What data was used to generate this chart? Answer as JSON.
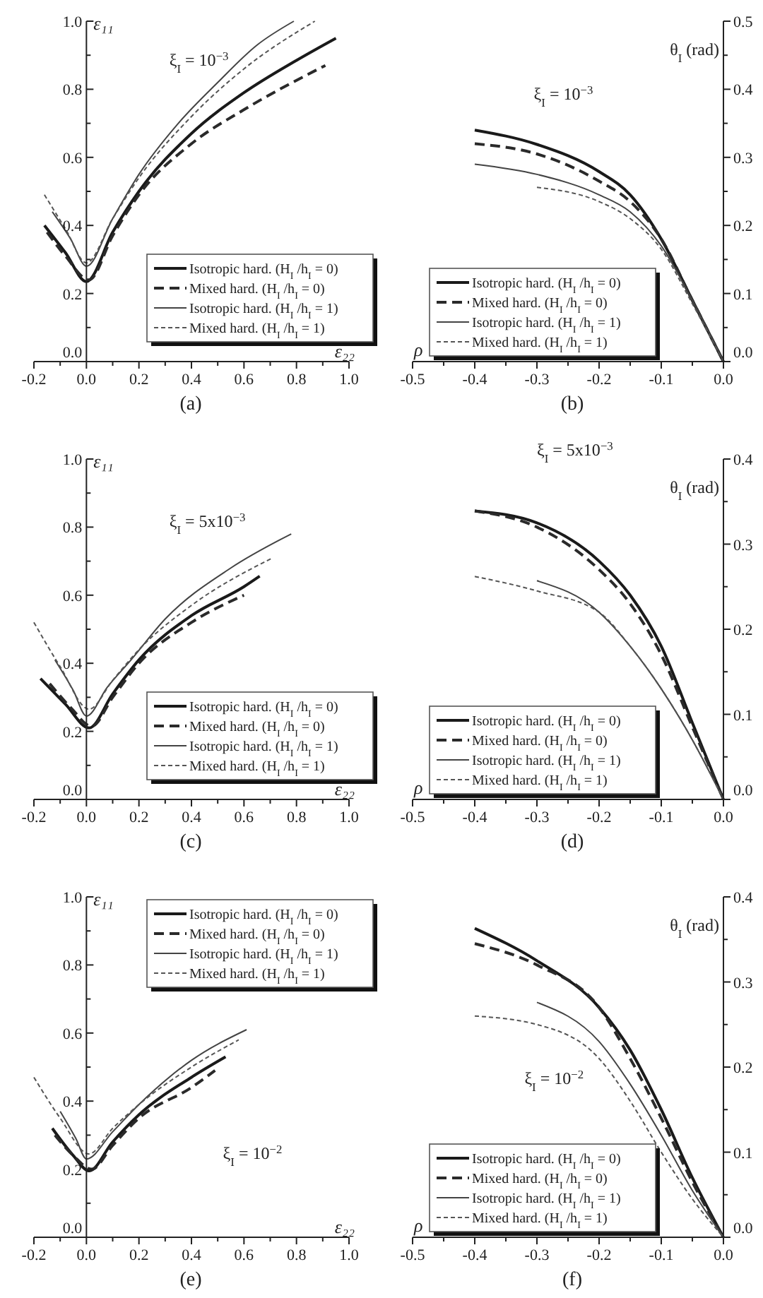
{
  "chart_data": [
    {
      "type": "line",
      "title": "(a)",
      "xlabel": "ε₂₂",
      "ylabel": "ε₁₁",
      "annotations": [
        "ξ$_{I}$ = 10$^{−3}$"
      ],
      "legend": "bottom right",
      "xlim": [
        -0.2,
        1.0
      ],
      "ylim": [
        0,
        1.0
      ],
      "xticks": [
        -0.2,
        {
          "value": -0.1,
          "label": null
        },
        {
          "value": 0,
          "label": "0.0"
        },
        {
          "value": 0.1,
          "label": null
        },
        0.2,
        {
          "value": 0.3,
          "label": null
        },
        0.4,
        {
          "value": 0.5,
          "label": null
        },
        0.6,
        {
          "value": 0.7,
          "label": null
        },
        0.8,
        {
          "value": 0.9,
          "label": null
        },
        {
          "value": 1,
          "label": "1.0"
        }
      ],
      "yticks": [
        {
          "value": 0,
          "label": "0.0"
        },
        {
          "value": 0.1,
          "label": null
        },
        0.2,
        {
          "value": 0.3,
          "label": null
        },
        0.4,
        {
          "value": 0.5,
          "label": null
        },
        0.6,
        {
          "value": 0.7,
          "label": null
        },
        0.8,
        {
          "value": 0.9,
          "label": null
        },
        {
          "value": 1,
          "label": "1.0"
        }
      ],
      "series": [
        {
          "name": "Isotropic hard. (H$_{I}$ /h$_{I}$ = 0)",
          "color": "#1a1a1a",
          "line_style": "solid",
          "x": [
            -0.16,
            -0.08,
            0,
            0.1,
            0.2,
            0.4,
            0.6,
            0.8,
            0.95
          ],
          "values": [
            0.4,
            0.32,
            0.235,
            0.38,
            0.5,
            0.67,
            0.79,
            0.885,
            0.95
          ]
        },
        {
          "name": "Mixed hard. (H$_{I}$ /h$_{I}$ = 0)",
          "color": "#2a2a2a",
          "line_style": "dashed",
          "x": [
            -0.15,
            -0.08,
            0.01,
            0.1,
            0.2,
            0.4,
            0.6,
            0.91
          ],
          "values": [
            0.38,
            0.31,
            0.24,
            0.37,
            0.49,
            0.64,
            0.74,
            0.87
          ]
        },
        {
          "name": "Isotropic hard. (H$_{I}$ /h$_{I}$ = 1)",
          "color": "#444444",
          "line_style": "solid",
          "x": [
            -0.13,
            -0.06,
            0,
            0.1,
            0.2,
            0.35,
            0.5,
            0.65,
            0.79
          ],
          "values": [
            0.44,
            0.36,
            0.28,
            0.42,
            0.55,
            0.7,
            0.82,
            0.93,
            1.0
          ]
        },
        {
          "name": "Mixed hard. (H$_{I}$ /h$_{I}$ = 1)",
          "color": "#555555",
          "line_style": "dotted",
          "x": [
            -0.16,
            -0.08,
            0,
            0.1,
            0.2,
            0.4,
            0.6,
            0.87
          ],
          "values": [
            0.49,
            0.39,
            0.29,
            0.42,
            0.54,
            0.72,
            0.86,
            1.0
          ]
        }
      ]
    },
    {
      "type": "line",
      "title": "(b)",
      "xlabel": "ρ",
      "ylabel": "θ$_{I}$ (rad)",
      "annotations": [
        "ξ$_{I}$ = 10$^{−3}$"
      ],
      "legend": "bottom left",
      "xlim": [
        -0.5,
        0
      ],
      "ylim": [
        0,
        0.5
      ],
      "xticks": [
        -0.5,
        {
          "value": -0.45,
          "label": null
        },
        -0.4,
        {
          "value": -0.35,
          "label": null
        },
        -0.3,
        {
          "value": -0.25,
          "label": null
        },
        -0.2,
        {
          "value": -0.15,
          "label": null
        },
        -0.1,
        {
          "value": -0.05,
          "label": null
        },
        {
          "value": 0,
          "label": "0.0"
        }
      ],
      "yticks": [
        {
          "value": 0,
          "label": "0.0"
        },
        {
          "value": 0.05,
          "label": null
        },
        0.1,
        {
          "value": 0.15,
          "label": null
        },
        0.2,
        {
          "value": 0.25,
          "label": null
        },
        0.3,
        {
          "value": 0.35,
          "label": null
        },
        0.4,
        {
          "value": 0.45,
          "label": null
        },
        0.5
      ],
      "series": [
        {
          "name": "Isotropic hard. (H$_{I}$ /h$_{I}$ = 0)",
          "color": "#1a1a1a",
          "line_style": "solid",
          "x": [
            -0.4,
            -0.3,
            -0.2,
            -0.15,
            -0.1,
            -0.05,
            0
          ],
          "values": [
            0.34,
            0.319,
            0.279,
            0.245,
            0.18,
            0.09,
            0
          ]
        },
        {
          "name": "Mixed hard. (H$_{I}$ /h$_{I}$ = 0)",
          "color": "#2a2a2a",
          "line_style": "dashed",
          "x": [
            -0.4,
            -0.3,
            -0.2,
            -0.15,
            -0.1,
            -0.05,
            0
          ],
          "values": [
            0.32,
            0.305,
            0.265,
            0.235,
            0.18,
            0.09,
            0
          ]
        },
        {
          "name": "Isotropic hard. (H$_{I}$ /h$_{I}$ = 1)",
          "color": "#444444",
          "line_style": "solid",
          "x": [
            -0.4,
            -0.3,
            -0.2,
            -0.15,
            -0.1,
            -0.05,
            0
          ],
          "values": [
            0.29,
            0.275,
            0.245,
            0.22,
            0.17,
            0.09,
            0
          ]
        },
        {
          "name": "Mixed hard. (H$_{I}$ /h$_{I}$ = 1)",
          "color": "#555555",
          "line_style": "dotted",
          "x": [
            -0.3,
            -0.2,
            -0.15,
            -0.1,
            -0.05,
            0
          ],
          "values": [
            0.256,
            0.235,
            0.21,
            0.165,
            0.085,
            0
          ]
        }
      ]
    },
    {
      "type": "line",
      "title": "(c)",
      "xlabel": "ε₂₂",
      "ylabel": "ε₁₁",
      "annotations": [
        "ξ$_{I}$ = 5x10$^{−3}$"
      ],
      "legend": "bottom right",
      "xlim": [
        -0.2,
        1.0
      ],
      "ylim": [
        0,
        1.0
      ],
      "xticks": [
        -0.2,
        {
          "value": -0.1,
          "label": null
        },
        {
          "value": 0,
          "label": "0.0"
        },
        {
          "value": 0.1,
          "label": null
        },
        0.2,
        {
          "value": 0.3,
          "label": null
        },
        0.4,
        {
          "value": 0.5,
          "label": null
        },
        0.6,
        {
          "value": 0.7,
          "label": null
        },
        0.8,
        {
          "value": 0.9,
          "label": null
        },
        {
          "value": 1,
          "label": "1.0"
        }
      ],
      "yticks": [
        {
          "value": 0,
          "label": "0.0"
        },
        {
          "value": 0.1,
          "label": null
        },
        0.2,
        {
          "value": 0.3,
          "label": null
        },
        0.4,
        {
          "value": 0.5,
          "label": null
        },
        0.6,
        {
          "value": 0.7,
          "label": null
        },
        0.8,
        {
          "value": 0.9,
          "label": null
        },
        {
          "value": 1,
          "label": "1.0"
        }
      ],
      "series": [
        {
          "name": "Isotropic hard. (H$_{I}$ /h$_{I}$ = 0)",
          "color": "#1a1a1a",
          "line_style": "solid",
          "x": [
            -0.175,
            -0.08,
            0.01,
            0.1,
            0.2,
            0.4,
            0.6,
            0.66
          ],
          "values": [
            0.355,
            0.28,
            0.21,
            0.31,
            0.41,
            0.54,
            0.625,
            0.656
          ]
        },
        {
          "name": "Mixed hard. (H$_{I}$ /h$_{I}$ = 0)",
          "color": "#2a2a2a",
          "line_style": "dashed",
          "x": [
            -0.14,
            -0.06,
            0.02,
            0.1,
            0.2,
            0.4,
            0.6
          ],
          "values": [
            0.34,
            0.27,
            0.215,
            0.3,
            0.4,
            0.52,
            0.6
          ]
        },
        {
          "name": "Isotropic hard. (H$_{I}$ /h$_{I}$ = 1)",
          "color": "#444444",
          "line_style": "solid",
          "x": [
            -0.12,
            -0.05,
            0,
            0.08,
            0.17,
            0.3,
            0.55,
            0.78
          ],
          "values": [
            0.41,
            0.32,
            0.245,
            0.33,
            0.41,
            0.53,
            0.68,
            0.78
          ]
        },
        {
          "name": "Mixed hard. (H$_{I}$ /h$_{I}$ = 1)",
          "color": "#555555",
          "line_style": "dotted",
          "x": [
            -0.2,
            -0.1,
            0.01,
            0.1,
            0.2,
            0.4,
            0.71
          ],
          "values": [
            0.52,
            0.39,
            0.265,
            0.35,
            0.44,
            0.57,
            0.71
          ]
        }
      ]
    },
    {
      "type": "line",
      "title": "(d)",
      "xlabel": "ρ",
      "ylabel": "θ$_{I}$ (rad)",
      "annotations": [
        "ξ$_{I}$ = 5x10$^{−3}$"
      ],
      "legend": "bottom left",
      "xlim": [
        -0.5,
        0
      ],
      "ylim": [
        0,
        0.4
      ],
      "xticks": [
        -0.5,
        {
          "value": -0.45,
          "label": null
        },
        -0.4,
        {
          "value": -0.35,
          "label": null
        },
        -0.3,
        {
          "value": -0.25,
          "label": null
        },
        -0.2,
        {
          "value": -0.15,
          "label": null
        },
        -0.1,
        {
          "value": -0.05,
          "label": null
        },
        {
          "value": 0,
          "label": "0.0"
        }
      ],
      "yticks": [
        {
          "value": 0,
          "label": "0.0"
        },
        {
          "value": 0.05,
          "label": null
        },
        0.1,
        {
          "value": 0.15,
          "label": null
        },
        0.2,
        {
          "value": 0.25,
          "label": null
        },
        0.3,
        {
          "value": 0.35,
          "label": null
        },
        0.4
      ],
      "series": [
        {
          "name": "Isotropic hard. (H$_{I}$ /h$_{I}$ = 0)",
          "color": "#1a1a1a",
          "line_style": "solid",
          "x": [
            -0.4,
            -0.3,
            -0.2,
            -0.15,
            -0.1,
            -0.05,
            0
          ],
          "values": [
            0.339,
            0.325,
            0.28,
            0.24,
            0.18,
            0.09,
            0
          ]
        },
        {
          "name": "Mixed hard. (H$_{I}$ /h$_{I}$ = 0)",
          "color": "#2a2a2a",
          "line_style": "dashed",
          "x": [
            -0.4,
            -0.3,
            -0.2,
            -0.15,
            -0.1,
            -0.05,
            0
          ],
          "values": [
            0.339,
            0.32,
            0.27,
            0.23,
            0.17,
            0.085,
            0
          ]
        },
        {
          "name": "Isotropic hard. (H$_{I}$ /h$_{I}$ = 1)",
          "color": "#444444",
          "line_style": "solid",
          "x": [
            -0.3,
            -0.2,
            -0.15,
            -0.1,
            -0.05,
            0
          ],
          "values": [
            0.257,
            0.22,
            0.18,
            0.13,
            0.07,
            0
          ]
        },
        {
          "name": "Mixed hard. (H$_{I}$ /h$_{I}$ = 1)",
          "color": "#555555",
          "line_style": "dotted",
          "x": [
            -0.4,
            -0.3,
            -0.2,
            -0.15,
            -0.1,
            -0.05,
            0
          ],
          "values": [
            0.262,
            0.245,
            0.22,
            0.18,
            0.13,
            0.07,
            0
          ]
        }
      ]
    },
    {
      "type": "line",
      "title": "(e)",
      "xlabel": "ε₂₂",
      "ylabel": "ε₁₁",
      "annotations": [
        "ξ$_{I}$ = 10$^{−2}$"
      ],
      "legend": "top right",
      "xlim": [
        -0.2,
        1.0
      ],
      "ylim": [
        0,
        1.0
      ],
      "xticks": [
        -0.2,
        {
          "value": -0.1,
          "label": null
        },
        {
          "value": 0,
          "label": "0.0"
        },
        {
          "value": 0.1,
          "label": null
        },
        0.2,
        {
          "value": 0.3,
          "label": null
        },
        0.4,
        {
          "value": 0.5,
          "label": null
        },
        0.6,
        {
          "value": 0.7,
          "label": null
        },
        0.8,
        {
          "value": 0.9,
          "label": null
        },
        {
          "value": 1,
          "label": "1.0"
        }
      ],
      "yticks": [
        {
          "value": 0,
          "label": "0.0"
        },
        {
          "value": 0.1,
          "label": null
        },
        0.2,
        {
          "value": 0.3,
          "label": null
        },
        0.4,
        {
          "value": 0.5,
          "label": null
        },
        0.6,
        {
          "value": 0.7,
          "label": null
        },
        0.8,
        {
          "value": 0.9,
          "label": null
        },
        {
          "value": 1,
          "label": "1.0"
        }
      ],
      "series": [
        {
          "name": "Isotropic hard. (H$_{I}$ /h$_{I}$ = 0)",
          "color": "#1a1a1a",
          "line_style": "solid",
          "x": [
            -0.13,
            -0.05,
            0.01,
            0.1,
            0.2,
            0.4,
            0.53
          ],
          "values": [
            0.32,
            0.24,
            0.195,
            0.28,
            0.36,
            0.47,
            0.53
          ]
        },
        {
          "name": "Mixed hard. (H$_{I}$ /h$_{I}$ = 0)",
          "color": "#2a2a2a",
          "line_style": "dashed",
          "x": [
            -0.12,
            -0.05,
            0.02,
            0.1,
            0.2,
            0.4,
            0.49
          ],
          "values": [
            0.3,
            0.24,
            0.2,
            0.27,
            0.35,
            0.44,
            0.49
          ]
        },
        {
          "name": "Isotropic hard. (H$_{I}$ /h$_{I}$ = 1)",
          "color": "#444444",
          "line_style": "solid",
          "x": [
            -0.1,
            -0.04,
            0,
            0.1,
            0.2,
            0.4,
            0.61
          ],
          "values": [
            0.37,
            0.29,
            0.23,
            0.31,
            0.39,
            0.52,
            0.61
          ]
        },
        {
          "name": "Mixed hard. (H$_{I}$ /h$_{I}$ = 1)",
          "color": "#555555",
          "line_style": "dotted",
          "x": [
            -0.2,
            -0.1,
            0.01,
            0.1,
            0.2,
            0.4,
            0.58
          ],
          "values": [
            0.47,
            0.35,
            0.245,
            0.32,
            0.39,
            0.5,
            0.58
          ]
        }
      ]
    },
    {
      "type": "line",
      "title": "(f)",
      "xlabel": "ρ",
      "ylabel": "θ$_{I}$ (rad)",
      "annotations": [
        "ξ$_{I}$ = 10$^{−2}$"
      ],
      "legend": "bottom left",
      "xlim": [
        -0.5,
        0
      ],
      "ylim": [
        0,
        0.4
      ],
      "xticks": [
        -0.5,
        {
          "value": -0.45,
          "label": null
        },
        -0.4,
        {
          "value": -0.35,
          "label": null
        },
        -0.3,
        {
          "value": -0.25,
          "label": null
        },
        -0.2,
        {
          "value": -0.15,
          "label": null
        },
        -0.1,
        {
          "value": -0.05,
          "label": null
        },
        {
          "value": 0,
          "label": "0.0"
        }
      ],
      "yticks": [
        {
          "value": 0,
          "label": "0.0"
        },
        {
          "value": 0.05,
          "label": null
        },
        0.1,
        {
          "value": 0.15,
          "label": null
        },
        0.2,
        {
          "value": 0.25,
          "label": null
        },
        0.3,
        {
          "value": 0.35,
          "label": null
        },
        0.4
      ],
      "series": [
        {
          "name": "Isotropic hard. (H$_{I}$ /h$_{I}$ = 0)",
          "color": "#1a1a1a",
          "line_style": "solid",
          "x": [
            -0.4,
            -0.3,
            -0.2,
            -0.15,
            -0.1,
            -0.05,
            0
          ],
          "values": [
            0.363,
            0.325,
            0.27,
            0.22,
            0.15,
            0.07,
            0
          ]
        },
        {
          "name": "Mixed hard. (H$_{I}$ /h$_{I}$ = 0)",
          "color": "#2a2a2a",
          "line_style": "dashed",
          "x": [
            -0.4,
            -0.3,
            -0.2,
            -0.15,
            -0.1,
            -0.05,
            0
          ],
          "values": [
            0.345,
            0.32,
            0.27,
            0.21,
            0.14,
            0.065,
            0
          ]
        },
        {
          "name": "Isotropic hard. (H$_{I}$ /h$_{I}$ = 1)",
          "color": "#444444",
          "line_style": "solid",
          "x": [
            -0.3,
            -0.2,
            -0.15,
            -0.1,
            -0.05,
            0
          ],
          "values": [
            0.276,
            0.23,
            0.18,
            0.12,
            0.055,
            0
          ]
        },
        {
          "name": "Mixed hard. (H$_{I}$ /h$_{I}$ = 1)",
          "color": "#555555",
          "line_style": "dotted",
          "x": [
            -0.4,
            -0.3,
            -0.2,
            -0.15,
            -0.1,
            -0.05,
            0
          ],
          "values": [
            0.26,
            0.25,
            0.21,
            0.16,
            0.1,
            0.045,
            0
          ]
        }
      ]
    }
  ]
}
